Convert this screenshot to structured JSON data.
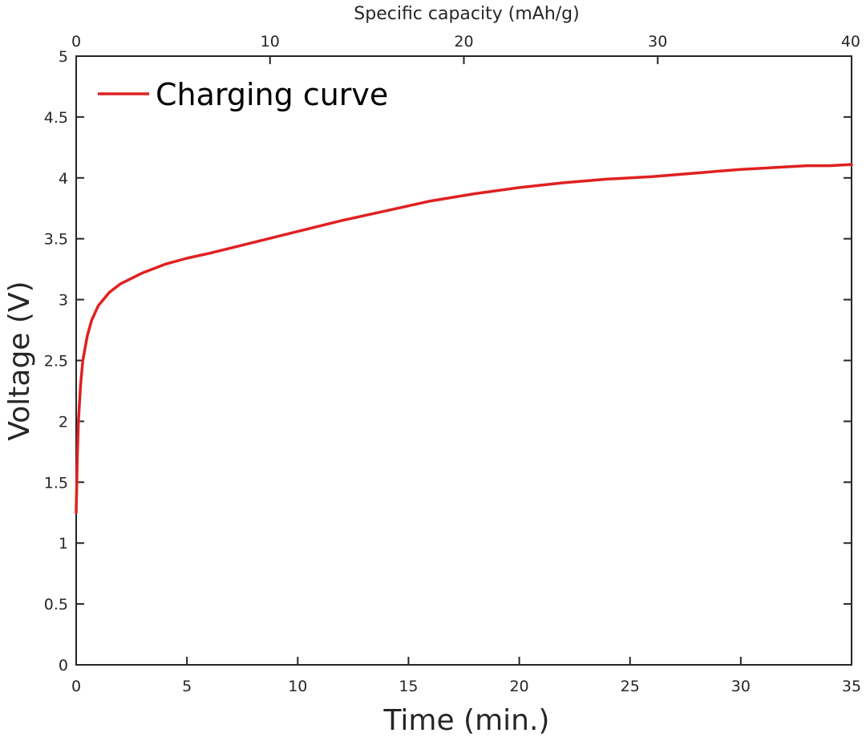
{
  "chart_data": {
    "type": "line",
    "xlabel": "Time (min.)",
    "ylabel": "Voltage (V)",
    "x2label": "Specific capacity (mAh/g)",
    "xlim": [
      0,
      35
    ],
    "ylim": [
      0,
      5
    ],
    "x2lim": [
      0,
      40
    ],
    "xticks": [
      "0",
      "5",
      "10",
      "15",
      "20",
      "25",
      "30",
      "35"
    ],
    "yticks": [
      "0",
      "0.5",
      "1",
      "1.5",
      "2",
      "2.5",
      "3",
      "3.5",
      "4",
      "4.5",
      "5"
    ],
    "x2ticks": [
      "0",
      "10",
      "20",
      "30",
      "40"
    ],
    "grid": false,
    "legend_position": "top-left",
    "series": [
      {
        "name": "Charging curve",
        "color": "#e02020",
        "x": [
          0,
          0.05,
          0.1,
          0.2,
          0.3,
          0.5,
          0.7,
          1,
          1.5,
          2,
          3,
          4,
          5,
          6,
          8,
          10,
          12,
          14,
          16,
          18,
          20,
          22,
          24,
          26,
          28,
          30,
          31,
          32,
          33,
          34,
          35
        ],
        "y": [
          1.25,
          1.7,
          2.0,
          2.3,
          2.5,
          2.7,
          2.83,
          2.95,
          3.06,
          3.13,
          3.22,
          3.29,
          3.34,
          3.38,
          3.47,
          3.56,
          3.65,
          3.73,
          3.81,
          3.87,
          3.92,
          3.96,
          3.99,
          4.01,
          4.04,
          4.07,
          4.08,
          4.09,
          4.1,
          4.1,
          4.11
        ]
      }
    ]
  }
}
